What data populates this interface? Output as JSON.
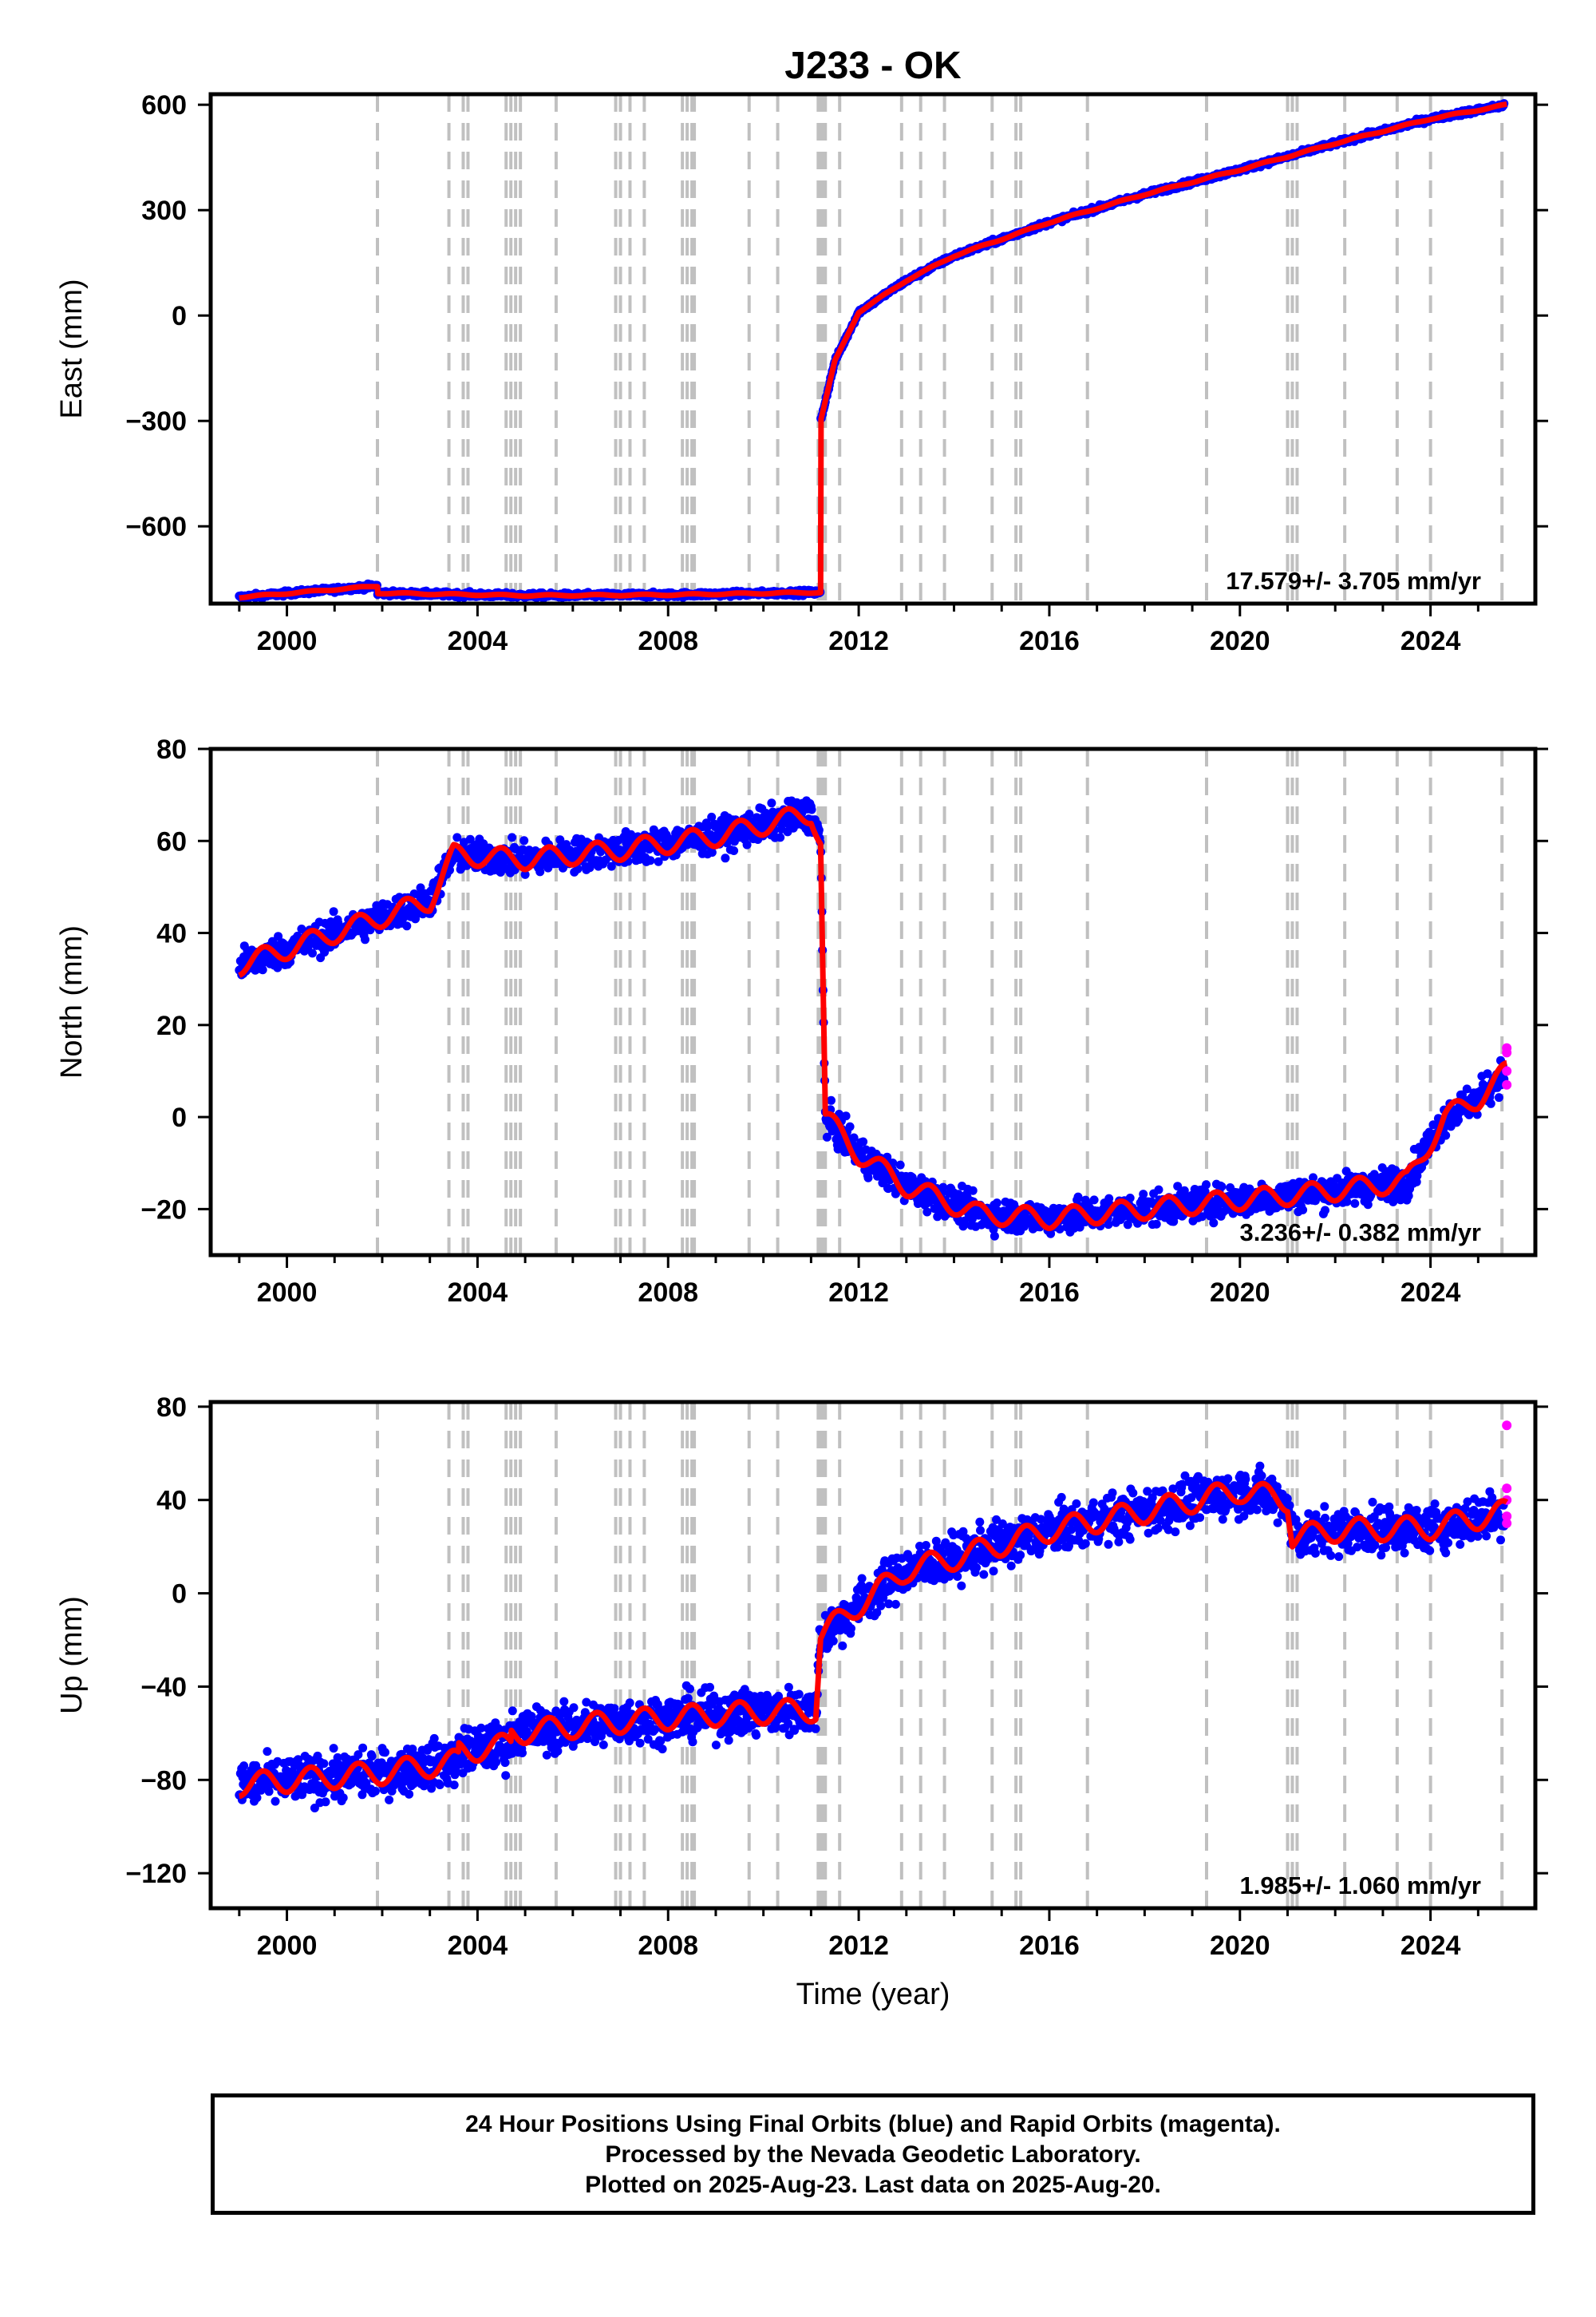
{
  "title": "J233 - OK",
  "xlabel": "Time (year)",
  "footer": {
    "line1": "24 Hour Positions Using Final Orbits (blue) and Rapid Orbits (magenta).",
    "line2": "Processed by the Nevada Geodetic Laboratory.",
    "line3": "Plotted on 2025-Aug-23. Last data on 2025-Aug-20."
  },
  "colors": {
    "final_orbits": "#0000ff",
    "rapid_orbits": "#ff00ff",
    "model": "#ff0000",
    "event_lines": "#c0c0c0"
  },
  "chart_data": [
    {
      "type": "scatter",
      "component": "east",
      "ylabel": "East (mm)",
      "rate_label": "17.579+/- 3.705 mm/yr",
      "xlim": [
        1998.4,
        2026.2
      ],
      "ylim": [
        -820,
        630
      ],
      "yticks": [
        -600,
        -300,
        0,
        300,
        600
      ],
      "xticks": [
        2000,
        2004,
        2008,
        2012,
        2016,
        2020,
        2024
      ],
      "grid": false,
      "series": [
        {
          "role": "final_orbits",
          "x_range": [
            1999.0,
            2025.55
          ],
          "scatter_mm": 5
        },
        {
          "role": "model",
          "x": [
            1999.0,
            2001.9,
            2001.9,
            2005.0,
            2008.0,
            2011.2,
            2011.2,
            2011.5,
            2012.0,
            2013.0,
            2014.0,
            2016.0,
            2018.0,
            2020.0,
            2022.0,
            2024.0,
            2025.6
          ],
          "y": [
            -802,
            -770,
            -790,
            -797,
            -795,
            -788,
            -300,
            -130,
            10,
            100,
            170,
            265,
            345,
            415,
            490,
            560,
            600
          ]
        }
      ]
    },
    {
      "type": "scatter",
      "component": "north",
      "ylabel": "North (mm)",
      "rate_label": "3.236+/- 0.382 mm/yr",
      "xlim": [
        1998.4,
        2026.2
      ],
      "ylim": [
        -30,
        80
      ],
      "yticks": [
        -20,
        0,
        20,
        40,
        60,
        80
      ],
      "xticks": [
        2000,
        2004,
        2008,
        2012,
        2016,
        2020,
        2024
      ],
      "grid": false,
      "series": [
        {
          "role": "final_orbits",
          "x_range": [
            1999.0,
            2025.55
          ],
          "scatter_mm": 2.5
        },
        {
          "role": "rapid_orbits",
          "x": [
            2025.6,
            2025.6,
            2025.6,
            2025.6
          ],
          "y": [
            7,
            10,
            14,
            15
          ]
        },
        {
          "role": "model",
          "x": [
            1999.0,
            2001.0,
            2003.0,
            2003.5,
            2005.0,
            2007.0,
            2009.0,
            2011.0,
            2011.2,
            2011.3,
            2012.0,
            2013.0,
            2014.5,
            2016.0,
            2018.0,
            2020.0,
            2022.0,
            2023.5,
            2024.3,
            2025.0,
            2025.6
          ],
          "y": [
            33,
            40,
            47,
            57,
            56,
            58,
            61,
            66,
            60,
            0,
            -8,
            -15,
            -21,
            -22,
            -20,
            -18,
            -16,
            -14,
            0,
            4,
            10
          ]
        }
      ]
    },
    {
      "type": "scatter",
      "component": "up",
      "ylabel": "Up (mm)",
      "rate_label": "1.985+/- 1.060 mm/yr",
      "xlim": [
        1998.4,
        2026.2
      ],
      "ylim": [
        -135,
        82
      ],
      "yticks": [
        -120,
        -80,
        -40,
        0,
        40,
        80
      ],
      "xticks": [
        2000,
        2004,
        2008,
        2012,
        2016,
        2020,
        2024
      ],
      "grid": false,
      "series": [
        {
          "role": "final_orbits",
          "x_range": [
            1999.0,
            2025.55
          ],
          "scatter_mm": 7
        },
        {
          "role": "rapid_orbits",
          "x": [
            2025.6,
            2025.6,
            2025.6,
            2025.6,
            2025.6
          ],
          "y": [
            72,
            45,
            40,
            33,
            30
          ]
        },
        {
          "role": "model",
          "x": [
            1999.0,
            2002.0,
            2003.6,
            2003.6,
            2004.7,
            2004.7,
            2007.0,
            2009.0,
            2011.1,
            2011.2,
            2012.0,
            2013.0,
            2014.0,
            2016.0,
            2018.0,
            2020.0,
            2021.0,
            2021.1,
            2022.0,
            2024.0,
            2025.6
          ],
          "y": [
            -82,
            -77,
            -72,
            -68,
            -65,
            -60,
            -55,
            -52,
            -50,
            -18,
            -5,
            10,
            15,
            27,
            35,
            44,
            40,
            24,
            27,
            28,
            35
          ]
        }
      ]
    }
  ],
  "event_lines_x": [
    2001.9,
    2003.4,
    2003.7,
    2003.8,
    2004.6,
    2004.7,
    2004.8,
    2004.9,
    2005.65,
    2006.9,
    2007.0,
    2007.2,
    2007.5,
    2008.3,
    2008.4,
    2008.5,
    2008.55,
    2009.7,
    2010.3,
    2011.15,
    2011.2,
    2011.25,
    2011.3,
    2011.6,
    2012.9,
    2013.3,
    2013.8,
    2014.8,
    2015.3,
    2015.4,
    2016.8,
    2019.3,
    2021.0,
    2021.1,
    2021.2,
    2022.2,
    2023.3,
    2024.0,
    2025.5
  ]
}
